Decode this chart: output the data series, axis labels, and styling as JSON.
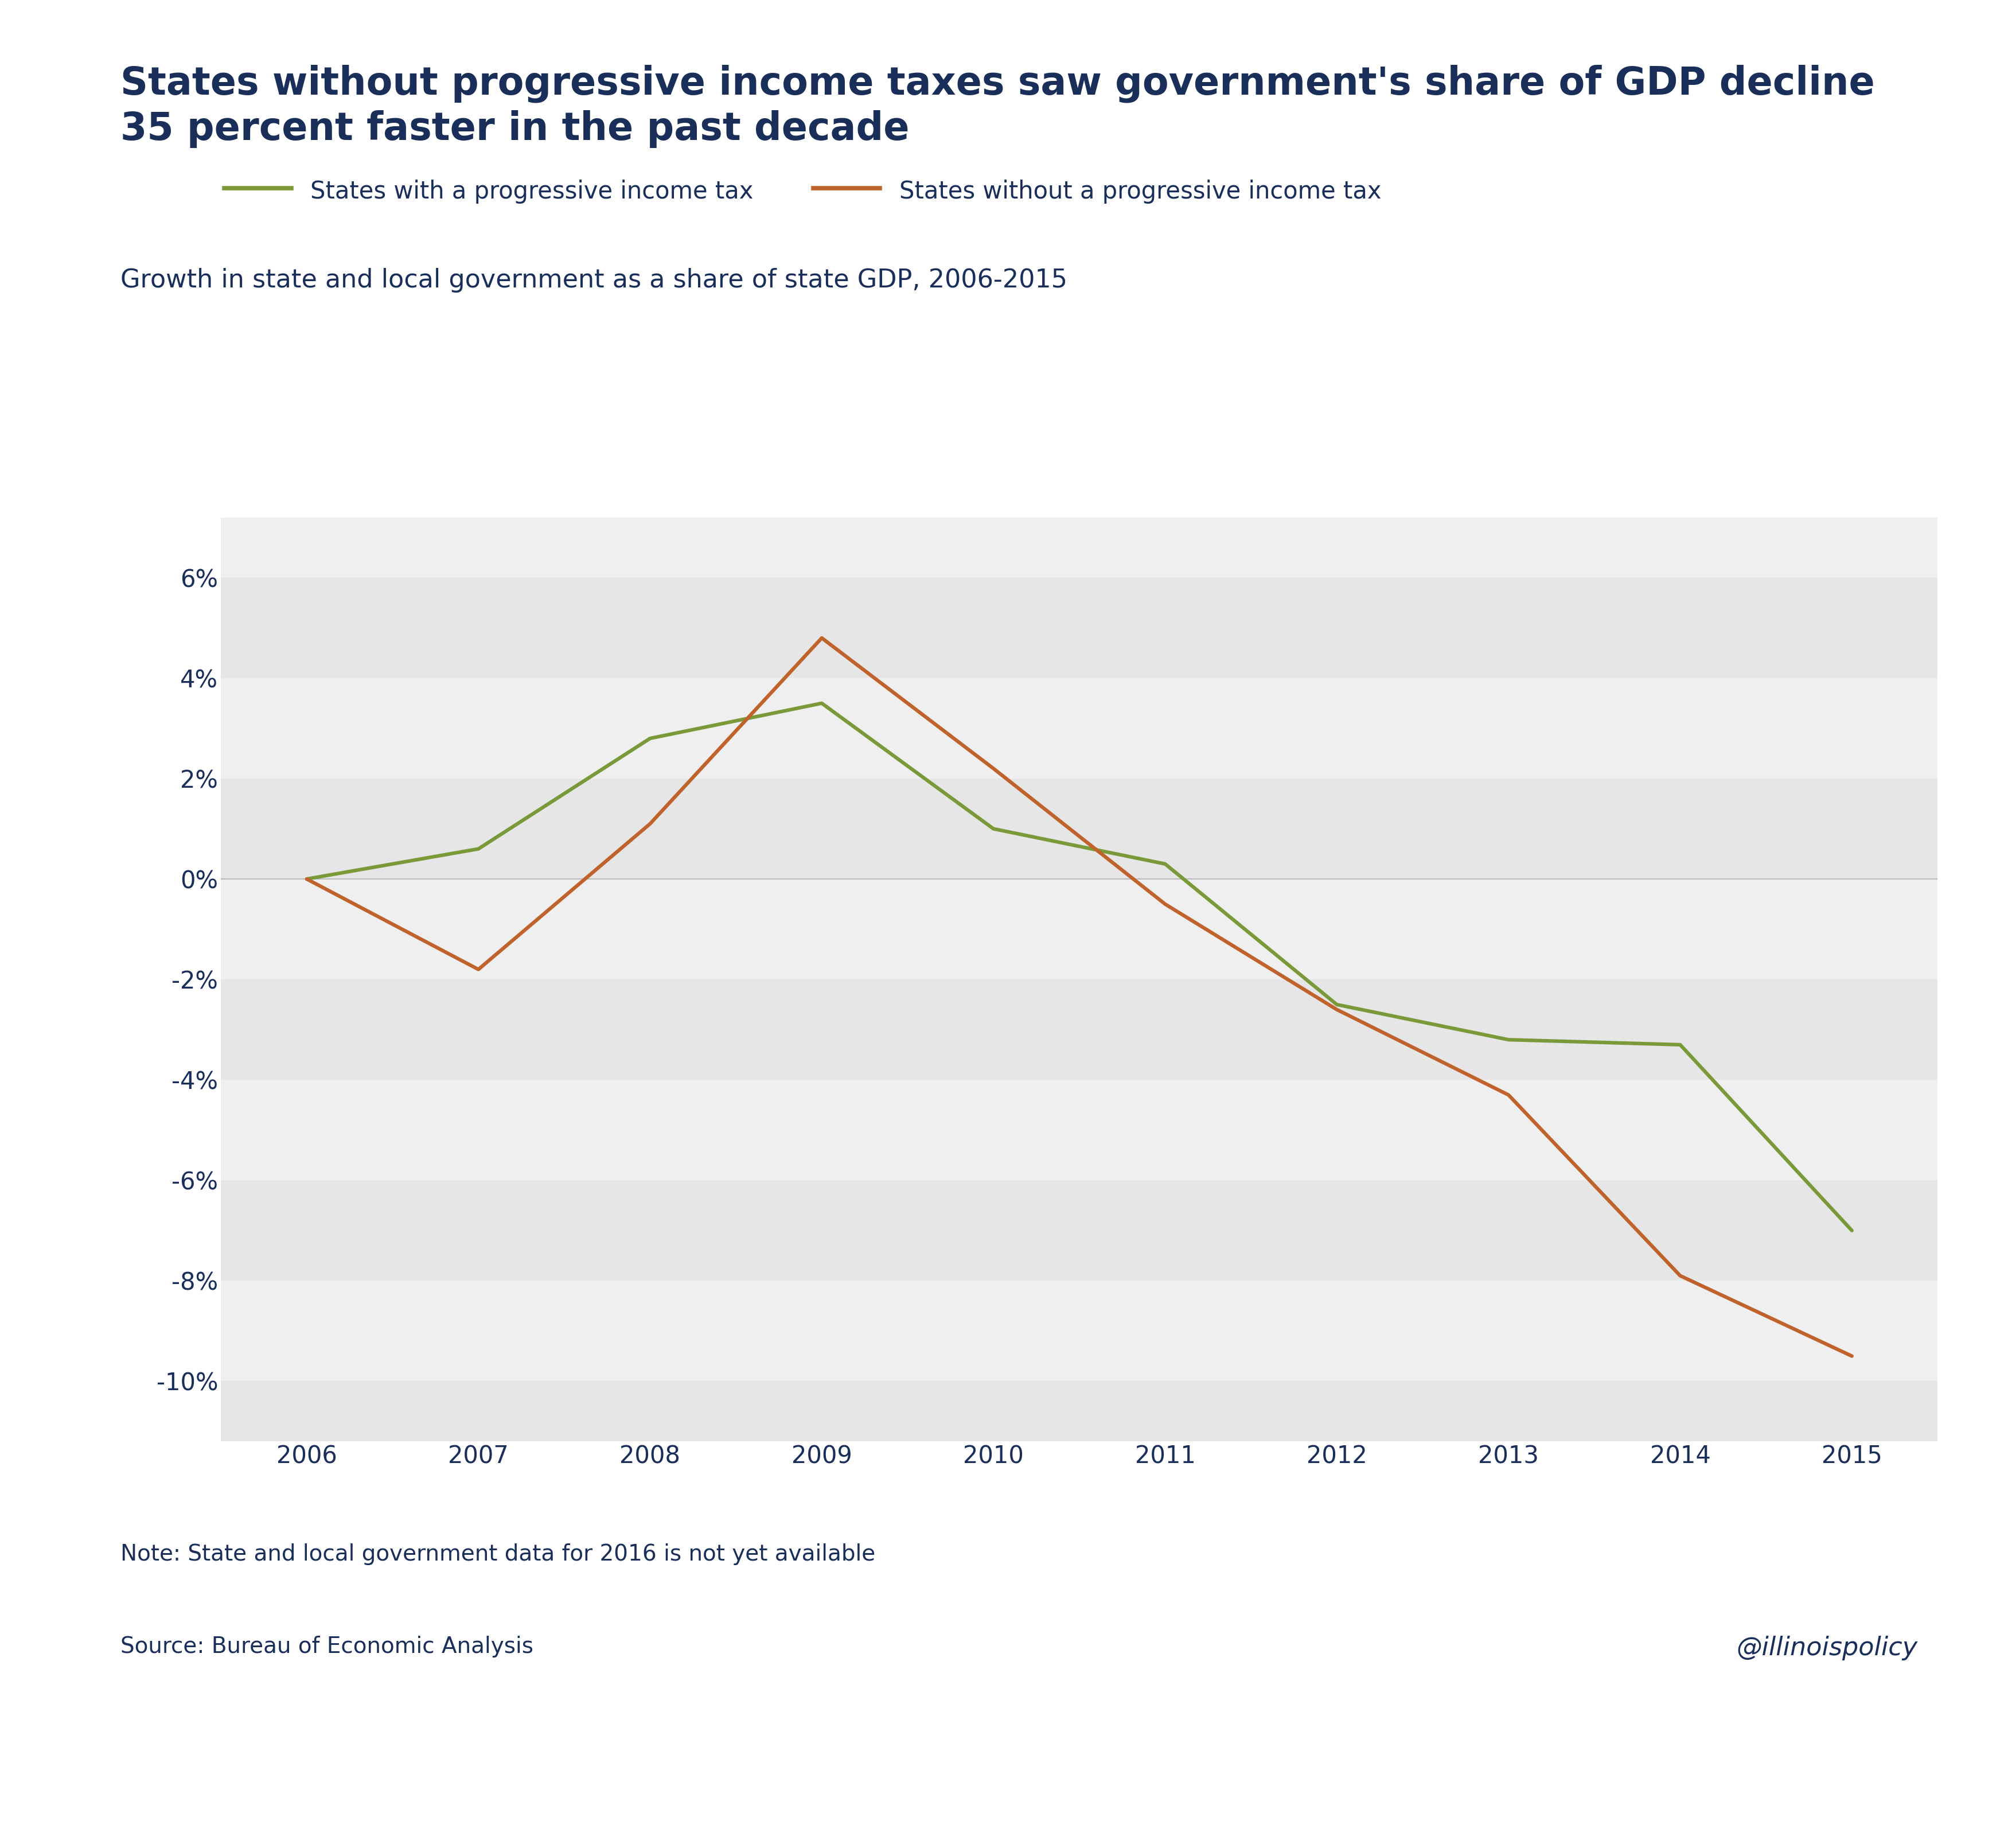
{
  "title_bold": "States without progressive income taxes saw government's share of GDP decline\n35 percent faster in the past decade",
  "subtitle": "Growth in state and local government as a share of state GDP, 2006-2015",
  "note": "Note: State and local government data for 2016 is not yet available",
  "source": "Source: Bureau of Economic Analysis",
  "watermark": "@illinoispolicy",
  "legend_progressive": "States with a progressive income tax",
  "legend_nonprogressive": "States without a progressive income tax",
  "years": [
    2006,
    2007,
    2008,
    2009,
    2010,
    2011,
    2012,
    2013,
    2014,
    2015
  ],
  "progressive_values": [
    0.0,
    0.6,
    2.8,
    3.5,
    1.0,
    0.3,
    -2.5,
    -3.2,
    -3.3,
    -7.0
  ],
  "nonprogressive_values": [
    0.0,
    -1.8,
    1.1,
    4.8,
    2.2,
    -0.5,
    -2.6,
    -4.3,
    -7.9,
    -9.5
  ],
  "progressive_color": "#7a9a3a",
  "nonprogressive_color": "#c0622b",
  "title_color": "#1a2e5a",
  "subtitle_color": "#1a2e5a",
  "note_color": "#1a2e5a",
  "source_color": "#1a2e5a",
  "watermark_color": "#1a2e5a",
  "tick_color": "#1a2e5a",
  "background_color": "#ffffff",
  "band_dark": "#e6e6e6",
  "band_light": "#efefef",
  "zero_line_color": "#bbbbbb",
  "line_width": 4.5,
  "ylim": [
    -11.2,
    7.2
  ],
  "yticks": [
    -10,
    -8,
    -6,
    -4,
    -2,
    0,
    2,
    4,
    6
  ],
  "title_fontsize": 48,
  "subtitle_fontsize": 32,
  "legend_fontsize": 30,
  "tick_fontsize": 30,
  "note_fontsize": 28,
  "source_fontsize": 28,
  "watermark_fontsize": 32
}
